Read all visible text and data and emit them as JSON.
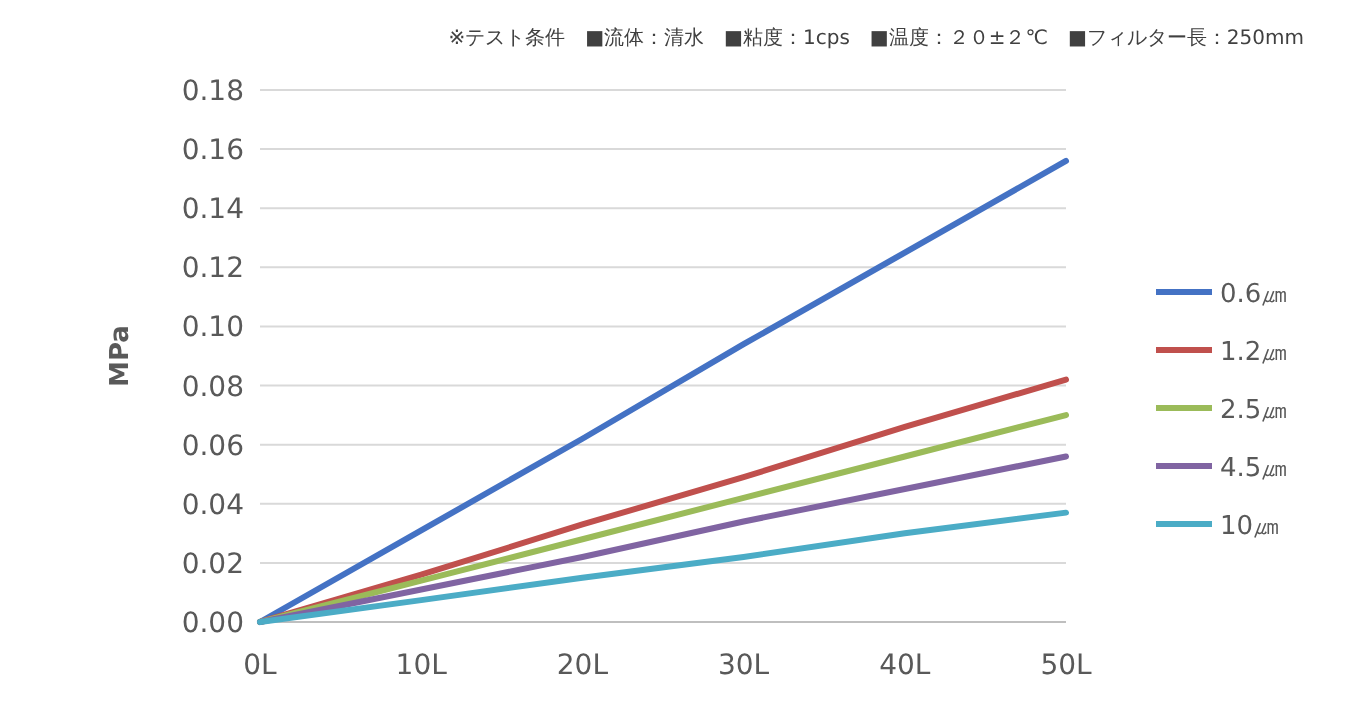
{
  "chart_data": {
    "type": "line",
    "subtitle": "※テスト条件　■流体：清水　■粘度：1cps　■温度：２０±２℃　■フィルター長：250mm",
    "ylabel": "MPa",
    "x": [
      0,
      10,
      20,
      30,
      40,
      50
    ],
    "xlim": [
      0,
      50
    ],
    "xticks": [
      {
        "value": 0,
        "label": "0L"
      },
      {
        "value": 10,
        "label": "10L"
      },
      {
        "value": 20,
        "label": "20L"
      },
      {
        "value": 30,
        "label": "30L"
      },
      {
        "value": 40,
        "label": "40L"
      },
      {
        "value": 50,
        "label": "50L"
      }
    ],
    "ylim": [
      0,
      0.18
    ],
    "yticks": [
      {
        "value": 0,
        "label": "0.00"
      },
      {
        "value": 0.02,
        "label": "0.02"
      },
      {
        "value": 0.04,
        "label": "0.04"
      },
      {
        "value": 0.06,
        "label": "0.06"
      },
      {
        "value": 0.08,
        "label": "0.08"
      },
      {
        "value": 0.1,
        "label": "0.10"
      },
      {
        "value": 0.12,
        "label": "0.12"
      },
      {
        "value": 0.14,
        "label": "0.14"
      },
      {
        "value": 0.16,
        "label": "0.16"
      },
      {
        "value": 0.18,
        "label": "0.18"
      }
    ],
    "grid": "y",
    "legend": "right",
    "marker": "none",
    "line_style": "solid",
    "series": [
      {
        "name": "0.6㎛",
        "color": "#4472c4",
        "values": [
          0,
          0.031,
          0.062,
          0.094,
          0.125,
          0.156
        ]
      },
      {
        "name": "1.2㎛",
        "color": "#c0504d",
        "values": [
          0,
          0.016,
          0.033,
          0.049,
          0.066,
          0.082
        ]
      },
      {
        "name": "2.5㎛",
        "color": "#9bbb59",
        "values": [
          0,
          0.014,
          0.028,
          0.042,
          0.056,
          0.07
        ]
      },
      {
        "name": "4.5㎛",
        "color": "#8064a2",
        "values": [
          0,
          0.011,
          0.022,
          0.034,
          0.045,
          0.056
        ]
      },
      {
        "name": "10㎛",
        "color": "#4bacc6",
        "values": [
          0,
          0.0074,
          0.015,
          0.022,
          0.03,
          0.037
        ]
      }
    ]
  }
}
